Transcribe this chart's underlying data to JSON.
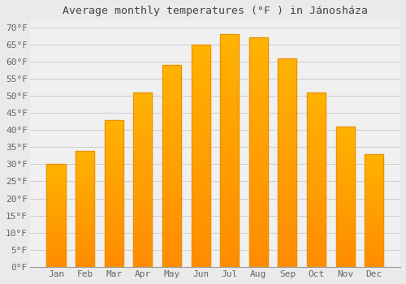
{
  "title": "Average monthly temperatures (°F ) in Jánosháza",
  "months": [
    "Jan",
    "Feb",
    "Mar",
    "Apr",
    "May",
    "Jun",
    "Jul",
    "Aug",
    "Sep",
    "Oct",
    "Nov",
    "Dec"
  ],
  "values": [
    30,
    34,
    43,
    51,
    59,
    65,
    68,
    67,
    61,
    51,
    41,
    33
  ],
  "bar_color_top": "#FFB300",
  "bar_color_bottom": "#FF8C00",
  "bar_edge_color": "#E8900A",
  "background_color": "#EAEAEA",
  "plot_bg_color": "#F0F0F0",
  "grid_color": "#CCCCCC",
  "ylim": [
    0,
    72
  ],
  "yticks": [
    0,
    5,
    10,
    15,
    20,
    25,
    30,
    35,
    40,
    45,
    50,
    55,
    60,
    65,
    70
  ],
  "title_fontsize": 9.5,
  "tick_fontsize": 8,
  "title_color": "#444444",
  "tick_color": "#666666"
}
